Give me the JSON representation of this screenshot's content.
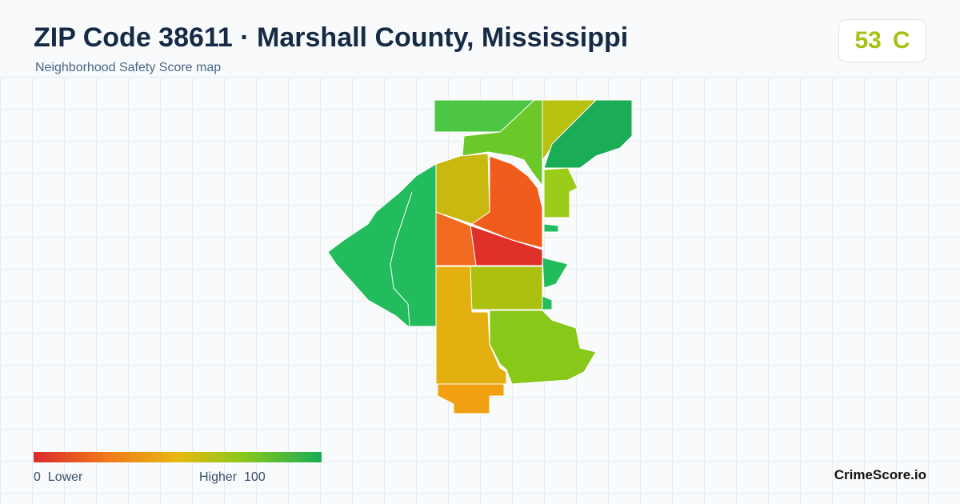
{
  "header": {
    "title": "ZIP Code 38611 · Marshall County, Mississippi",
    "subtitle": "Neighborhood Safety Score map"
  },
  "score": {
    "value": 53,
    "grade": "C"
  },
  "legend": {
    "min": 0,
    "min_label": "Lower",
    "max_label": "Higher",
    "max": 100
  },
  "brand": "CrimeScore.io"
}
